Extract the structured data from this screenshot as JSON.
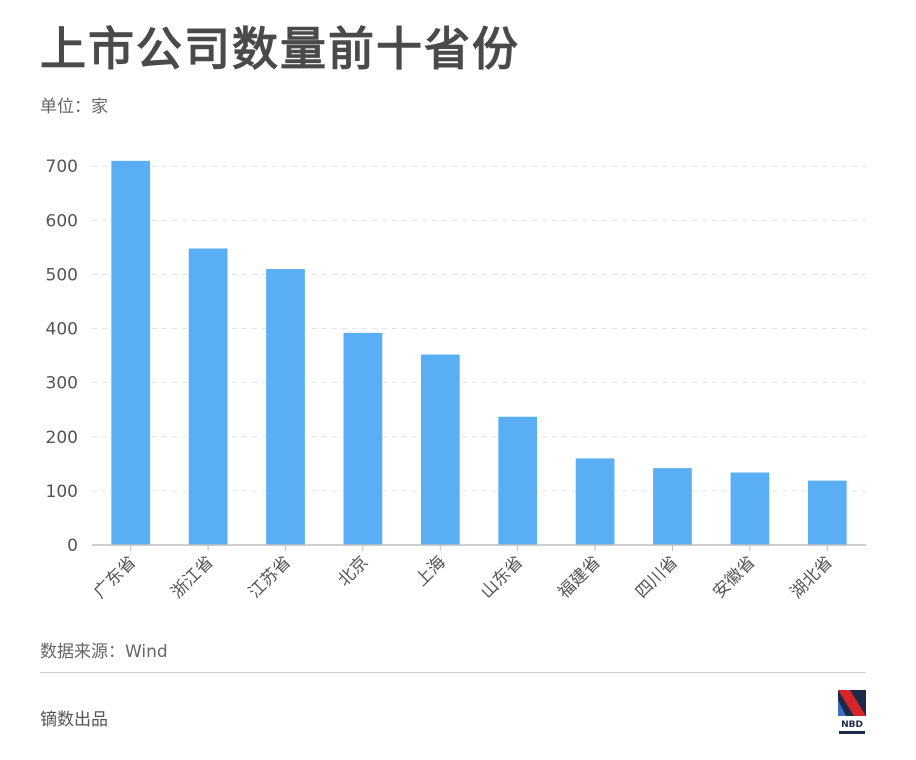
{
  "title": "上市公司数量前十省份",
  "unit_label": "单位：家",
  "source": "数据来源：Wind",
  "producer": "镝数出品",
  "logo": {
    "text": "NBD",
    "icon": "nbd-logo-icon"
  },
  "colors": {
    "bar": "#5aaef3",
    "axis": "#bdbdbd",
    "grid": "#e3e3e3",
    "tick_text": "#555555"
  },
  "chart_data": {
    "type": "bar",
    "categories": [
      "广东省",
      "浙江省",
      "江苏省",
      "北京",
      "上海",
      "山东省",
      "福建省",
      "四川省",
      "安徽省",
      "湖北省"
    ],
    "values": [
      710,
      548,
      510,
      392,
      352,
      237,
      160,
      142,
      134,
      119
    ],
    "yticks": [
      0,
      100,
      200,
      300,
      400,
      500,
      600,
      700
    ],
    "ylim": [
      0,
      730
    ],
    "grid": true,
    "legend": "none"
  }
}
